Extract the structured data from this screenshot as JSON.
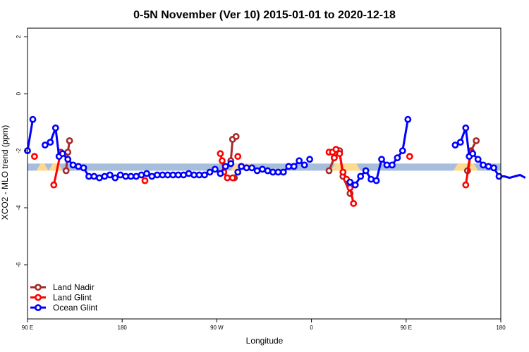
{
  "chart_data": {
    "type": "line",
    "title": "0-5N November (Ver 10)   2015-01-01 to 2020-12-18",
    "xlabel": "Longitude",
    "ylabel": "XCO2 - MLO trend (ppm)",
    "xlim": [
      -90,
      180
    ],
    "ylim": [
      -7.9,
      2.3
    ],
    "x_ticks": [
      {
        "value": -90,
        "label": "90 E"
      },
      {
        "value": -36,
        "label": "180"
      },
      {
        "value": 18,
        "label": "90 W"
      },
      {
        "value": 72,
        "label": "0"
      },
      {
        "value": 126,
        "label": "90 E"
      },
      {
        "value": 180,
        "label": "180"
      }
    ],
    "y_ticks": [
      {
        "value": 2,
        "label": "2"
      },
      {
        "value": 0,
        "label": "0"
      },
      {
        "value": -2,
        "label": "-2"
      },
      {
        "value": -4,
        "label": "-4"
      },
      {
        "value": -6,
        "label": "-6"
      }
    ],
    "band": {
      "y_low": -2.7,
      "y_high": -2.45,
      "blue_color": "#a6bddb",
      "yellow_color": "#fed98e",
      "yellow_segments": [
        [
          -85,
          -78
        ],
        [
          -78,
          -70
        ],
        [
          26,
          40
        ],
        [
          83,
          100
        ],
        [
          153,
          167
        ]
      ]
    },
    "legend_position": "bottom-left",
    "series": [
      {
        "name": "Land Nadir",
        "color": "#a52a2a",
        "segments": [
          [
            [
              -68,
              -2.7
            ],
            [
              -67,
              -2.05
            ],
            [
              -66,
              -1.65
            ]
          ],
          [
            [
              26,
              -2.35
            ],
            [
              27,
              -1.6
            ],
            [
              29,
              -1.5
            ]
          ],
          [
            [
              28,
              -2.95
            ]
          ],
          [
            [
              82,
              -2.7
            ],
            [
              85,
              -2.25
            ],
            [
              88,
              -2.0
            ],
            [
              90,
              -2.9
            ],
            [
              94,
              -3.5
            ]
          ],
          [
            [
              161,
              -2.7
            ],
            [
              163,
              -2.0
            ],
            [
              166,
              -1.65
            ]
          ]
        ]
      },
      {
        "name": "Land Glint",
        "color": "#ff0000",
        "segments": [
          [
            [
              -86,
              -2.2
            ]
          ],
          [
            [
              -75,
              -3.2
            ],
            [
              -71,
              -2.05
            ]
          ],
          [
            [
              -23,
              -3.05
            ]
          ],
          [
            [
              20,
              -2.1
            ],
            [
              21,
              -2.35
            ],
            [
              22,
              -2.75
            ],
            [
              24,
              -2.95
            ],
            [
              27,
              -2.95
            ]
          ],
          [
            [
              30,
              -2.2
            ]
          ],
          [
            [
              82,
              -2.05
            ],
            [
              84,
              -2.05
            ],
            [
              86,
              -1.95
            ],
            [
              88,
              -2.1
            ],
            [
              90,
              -2.75
            ],
            [
              92,
              -3.0
            ],
            [
              94,
              -3.3
            ],
            [
              96,
              -3.85
            ]
          ],
          [
            [
              85,
              -2.25
            ]
          ],
          [
            [
              128,
              -2.2
            ]
          ],
          [
            [
              160,
              -3.2
            ],
            [
              163,
              -2.05
            ]
          ]
        ]
      },
      {
        "name": "Ocean Glint",
        "color": "#0000ff",
        "segments": [
          [
            [
              -90,
              -2.0
            ],
            [
              -87,
              -0.9
            ]
          ],
          [
            [
              -80,
              -1.8
            ],
            [
              -77,
              -1.7
            ],
            [
              -74,
              -1.2
            ],
            [
              -72,
              -2.2
            ],
            [
              -70,
              -2.1
            ],
            [
              -67,
              -2.3
            ],
            [
              -64,
              -2.5
            ],
            [
              -61,
              -2.55
            ],
            [
              -58,
              -2.6
            ],
            [
              -55,
              -2.9
            ],
            [
              -52,
              -2.9
            ],
            [
              -49,
              -2.95
            ],
            [
              -46,
              -2.9
            ],
            [
              -43,
              -2.85
            ],
            [
              -40,
              -2.95
            ],
            [
              -37,
              -2.85
            ],
            [
              -34,
              -2.9
            ],
            [
              -31,
              -2.9
            ],
            [
              -28,
              -2.9
            ],
            [
              -25,
              -2.85
            ],
            [
              -22,
              -2.8
            ],
            [
              -19,
              -2.9
            ],
            [
              -16,
              -2.85
            ],
            [
              -13,
              -2.85
            ],
            [
              -10,
              -2.85
            ],
            [
              -7,
              -2.85
            ],
            [
              -4,
              -2.85
            ],
            [
              -1,
              -2.85
            ],
            [
              2,
              -2.8
            ],
            [
              5,
              -2.85
            ],
            [
              8,
              -2.85
            ],
            [
              11,
              -2.85
            ],
            [
              14,
              -2.75
            ],
            [
              17,
              -2.65
            ],
            [
              20,
              -2.8
            ],
            [
              23,
              -2.55
            ],
            [
              26,
              -2.45
            ]
          ],
          [
            [
              30,
              -2.75
            ],
            [
              32,
              -2.55
            ],
            [
              35,
              -2.6
            ],
            [
              38,
              -2.6
            ],
            [
              41,
              -2.7
            ],
            [
              44,
              -2.65
            ],
            [
              47,
              -2.7
            ],
            [
              50,
              -2.75
            ],
            [
              53,
              -2.75
            ],
            [
              56,
              -2.75
            ],
            [
              59,
              -2.55
            ],
            [
              62,
              -2.55
            ],
            [
              65,
              -2.35
            ],
            [
              68,
              -2.5
            ]
          ],
          [
            [
              71,
              -2.3
            ]
          ],
          [
            [
              94,
              -3.1
            ],
            [
              97,
              -3.2
            ],
            [
              100,
              -2.9
            ],
            [
              103,
              -2.7
            ],
            [
              106,
              -3.0
            ],
            [
              109,
              -3.05
            ],
            [
              112,
              -2.3
            ],
            [
              115,
              -2.5
            ],
            [
              118,
              -2.5
            ],
            [
              121,
              -2.25
            ],
            [
              124,
              -2.0
            ],
            [
              127,
              -0.9
            ]
          ],
          [
            [
              154,
              -1.8
            ],
            [
              157,
              -1.7
            ],
            [
              160,
              -1.2
            ],
            [
              162,
              -2.2
            ],
            [
              164,
              -2.1
            ],
            [
              167,
              -2.3
            ],
            [
              170,
              -2.5
            ],
            [
              173,
              -2.55
            ],
            [
              176,
              -2.6
            ],
            [
              179,
              -2.9
            ],
            [
              182,
              -2.9
            ],
            [
              185,
              -2.95
            ],
            [
              188,
              -2.9
            ],
            [
              191,
              -2.85
            ],
            [
              194,
              -2.95
            ]
          ]
        ]
      }
    ]
  }
}
